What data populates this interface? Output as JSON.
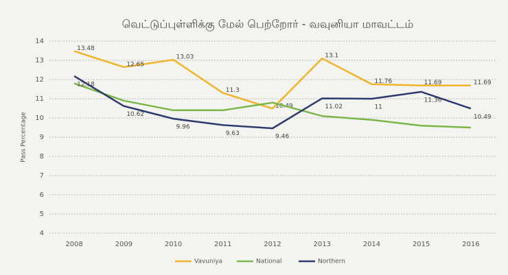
{
  "chart_data": {
    "type": "line",
    "title": "வெட்டுப்புள்ளிக்கு மேல் பெற்றோர் - வவுனியா மாவட்டம்",
    "y_label": "Pass Percentage",
    "categories": [
      "2008",
      "2009",
      "2010",
      "2011",
      "2012",
      "2013",
      "2014",
      "2015",
      "2016"
    ],
    "series": [
      {
        "name": "Vavuniya",
        "color": "#f0b429",
        "show_labels": true,
        "values": [
          13.48,
          12.65,
          13.03,
          11.3,
          10.49,
          13.1,
          11.76,
          11.69,
          11.69
        ]
      },
      {
        "name": "National",
        "color": "#7ab648",
        "show_labels": false,
        "values": [
          11.8,
          10.9,
          10.4,
          10.4,
          10.8,
          10.1,
          9.9,
          9.6,
          9.5
        ]
      },
      {
        "name": "Northern",
        "color": "#2e3a6b",
        "show_labels": true,
        "values": [
          12.18,
          10.62,
          9.96,
          9.63,
          9.46,
          11.02,
          11,
          11.36,
          10.49
        ]
      }
    ],
    "ylim": [
      4,
      14
    ],
    "yticks": [
      4,
      5,
      6,
      7,
      8,
      9,
      10,
      11,
      12,
      13,
      14
    ],
    "grid": true,
    "legend": "bottom"
  }
}
